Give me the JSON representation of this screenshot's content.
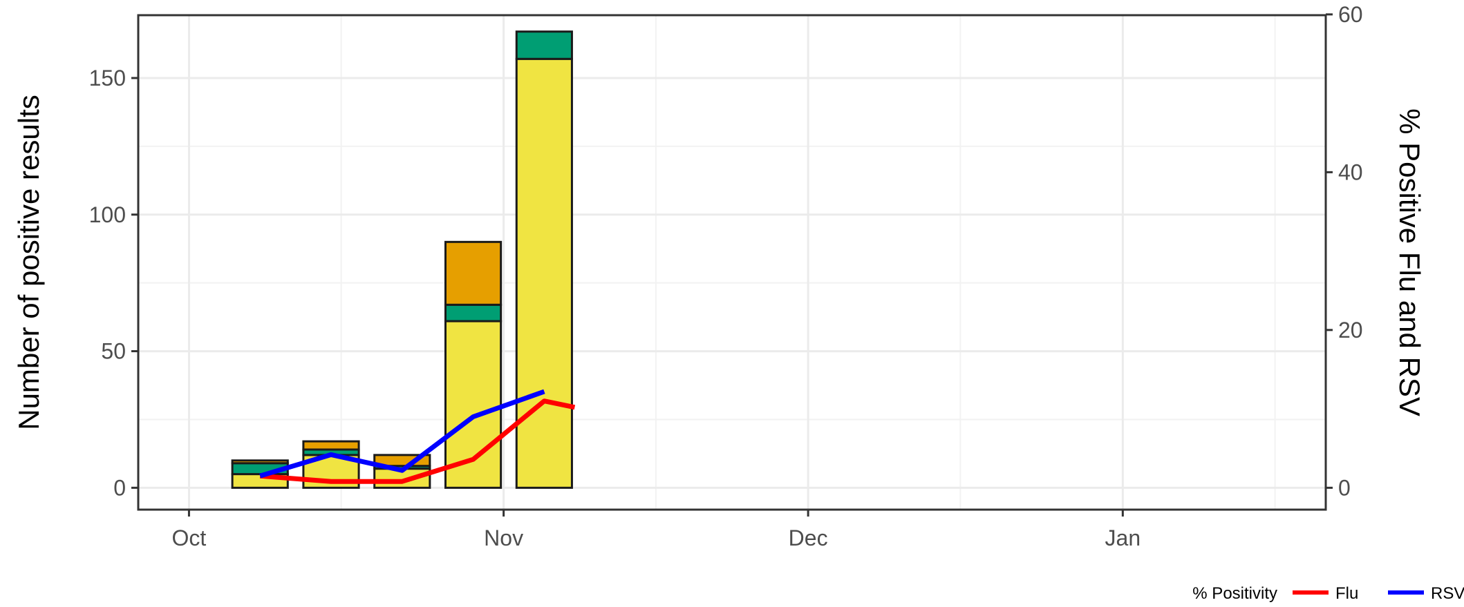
{
  "chart_data": {
    "type": "bar",
    "stacked": true,
    "title": "",
    "xlabel": "",
    "ylabel": "Number of positive results",
    "y2label": "% Positive Flu and RSV",
    "x_axis": {
      "type": "date",
      "range": [
        "2023-09-26",
        "2024-01-21"
      ],
      "ticks": [
        {
          "date": "2023-10-01",
          "label": "Oct"
        },
        {
          "date": "2023-11-01",
          "label": "Nov"
        },
        {
          "date": "2023-12-01",
          "label": "Dec"
        },
        {
          "date": "2024-01-01",
          "label": "Jan"
        }
      ]
    },
    "y_axis": {
      "range": [
        -8,
        173
      ],
      "ticks": [
        0,
        50,
        100,
        150
      ]
    },
    "y2_axis": {
      "range": [
        -2.77,
        59.9
      ],
      "ticks": [
        0,
        20,
        40,
        60
      ]
    },
    "grid": true,
    "bar_dates": [
      "2023-10-08",
      "2023-10-15",
      "2023-10-22",
      "2023-10-29",
      "2023-11-05"
    ],
    "bar_series": [
      {
        "color": "#f0e442",
        "values": [
          5,
          12,
          7,
          61,
          157
        ]
      },
      {
        "color": "#009e73",
        "values": [
          4,
          2,
          1,
          6,
          10
        ]
      },
      {
        "color": "#e69f00",
        "values": [
          1,
          3,
          4,
          23,
          0
        ]
      }
    ],
    "line_series": [
      {
        "name": "Flu",
        "color": "#ff0000",
        "points": [
          [
            "2023-10-08",
            1.5
          ],
          [
            "2023-10-15",
            0.8
          ],
          [
            "2023-10-22",
            0.8
          ],
          [
            "2023-10-29",
            3.6
          ],
          [
            "2023-11-05",
            11.0
          ],
          [
            "2023-11-08",
            10.2
          ]
        ]
      },
      {
        "name": "RSV",
        "color": "#0000ff",
        "points": [
          [
            "2023-10-08",
            1.5
          ],
          [
            "2023-10-15",
            4.2
          ],
          [
            "2023-10-22",
            2.2
          ],
          [
            "2023-10-29",
            9.0
          ],
          [
            "2023-11-05",
            12.2
          ]
        ]
      }
    ],
    "legend": {
      "title": "% Positivity",
      "position": "bottom-right"
    }
  }
}
